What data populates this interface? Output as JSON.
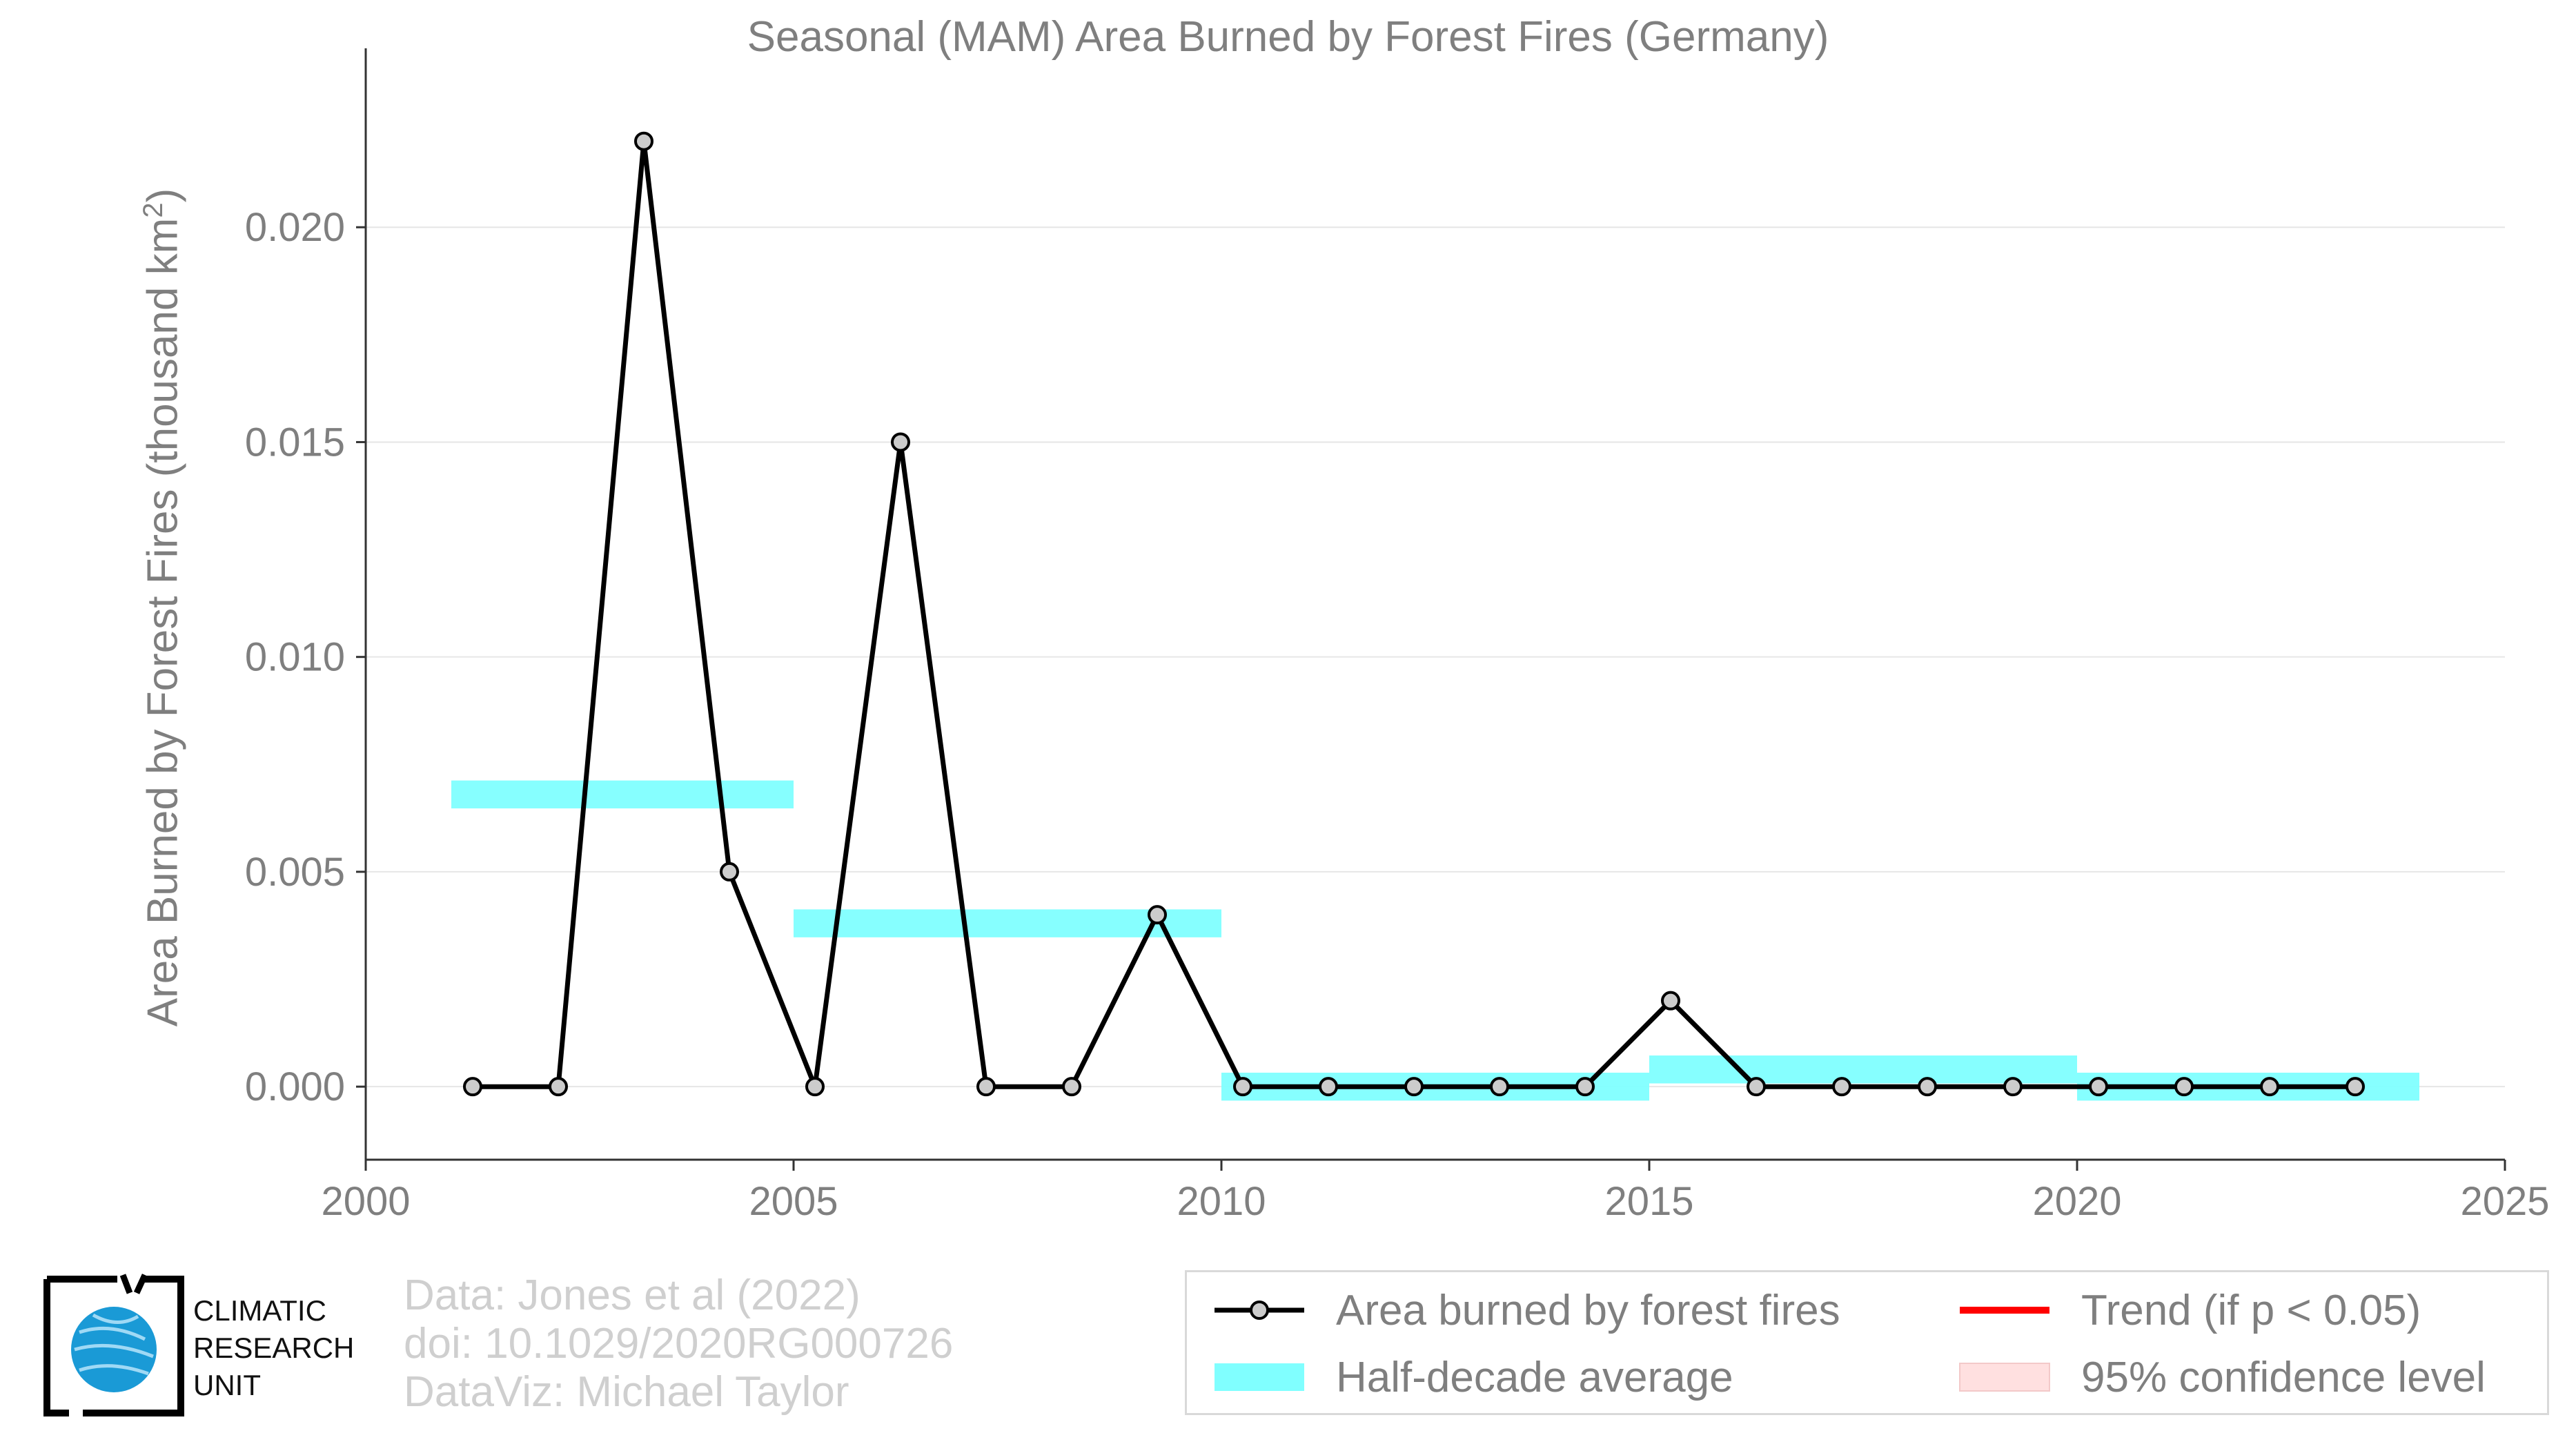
{
  "chart_data": {
    "type": "line",
    "title": "Seasonal (MAM) Area Burned by Forest Fires (Germany)",
    "ylabel": "Area Burned by Forest Fires (thousand km²)",
    "ylabel_parts": {
      "main": "Area Burned by Forest Fires (thousand km",
      "sup": "2",
      "close": ")"
    },
    "xlabel": "",
    "xlim": [
      2000,
      2025
    ],
    "ylim": [
      -0.0017,
      0.0232
    ],
    "xticks": [
      2000,
      2005,
      2010,
      2015,
      2020,
      2025
    ],
    "xtick_labels": [
      "2000",
      "2005",
      "2010",
      "2015",
      "2020",
      "2025"
    ],
    "yticks": [
      0.0,
      0.005,
      0.01,
      0.015,
      0.02
    ],
    "ytick_labels": [
      "0.000",
      "0.005",
      "0.010",
      "0.015",
      "0.020"
    ],
    "grid": true,
    "series": [
      {
        "name": "Area burned by forest fires",
        "color": "#000000",
        "marker_fill": "#cccccc",
        "x": [
          2001.25,
          2002.25,
          2003.25,
          2004.25,
          2005.25,
          2006.25,
          2007.25,
          2008.25,
          2009.25,
          2010.25,
          2011.25,
          2012.25,
          2013.25,
          2014.25,
          2015.25,
          2016.25,
          2017.25,
          2018.25,
          2019.25,
          2020.25,
          2021.25,
          2022.25,
          2023.25
        ],
        "y": [
          0.0,
          0.0,
          0.022,
          0.005,
          0.0,
          0.015,
          0.0,
          0.0,
          0.004,
          0.0,
          0.0,
          0.0,
          0.0,
          0.0,
          0.002,
          0.0,
          0.0,
          0.0,
          0.0,
          0.0,
          0.0,
          0.0,
          0.0
        ]
      }
    ],
    "half_decade_average": {
      "name": "Half-decade average",
      "color": "#80ffff",
      "segments": [
        {
          "x0": 2001,
          "x1": 2005,
          "y": 0.0068
        },
        {
          "x0": 2005,
          "x1": 2010,
          "y": 0.0038
        },
        {
          "x0": 2010,
          "x1": 2015,
          "y": 0.0
        },
        {
          "x0": 2015,
          "x1": 2020,
          "y": 0.0004
        },
        {
          "x0": 2020,
          "x1": 2024,
          "y": 0.0
        }
      ]
    },
    "legend": [
      {
        "key": "line-marker",
        "label": "Area burned by forest fires",
        "color": "#000000"
      },
      {
        "key": "band",
        "label": "Half-decade average",
        "color": "#80ffff"
      },
      {
        "key": "line",
        "label": "Trend (if p < 0.05)",
        "color": "#ff0000"
      },
      {
        "key": "fill",
        "label": "95% confidence level",
        "color": "#ffe0e0"
      }
    ],
    "legend_position": "bottom-right"
  },
  "credits": {
    "line1": "Data: Jones et al (2022)",
    "line2": "doi: 10.1029/2020RG000726",
    "line3": "DataViz: Michael Taylor"
  },
  "logo": {
    "line1": "CLIMATIC",
    "line2": "RESEARCH",
    "line3": "UNIT",
    "icon": "globe-icon"
  }
}
